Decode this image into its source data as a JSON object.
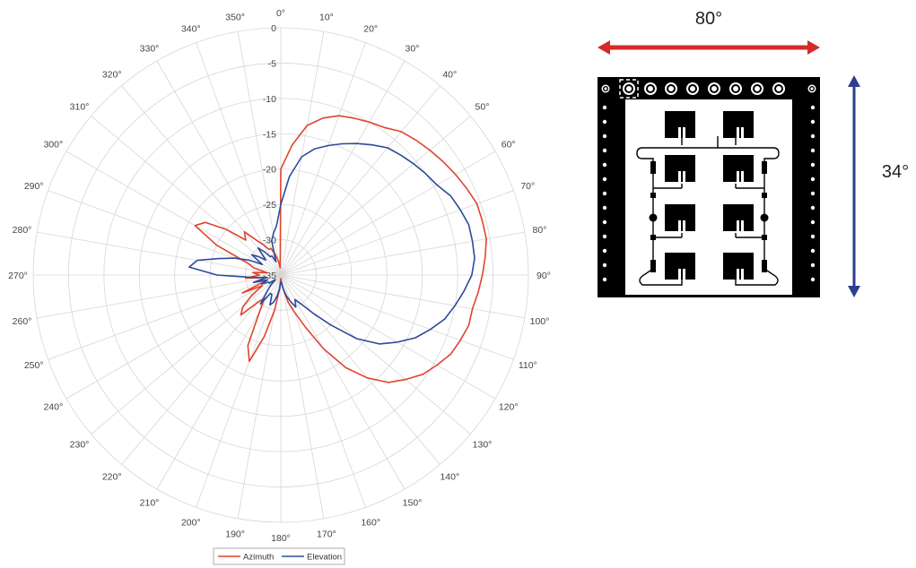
{
  "chart_data": {
    "type": "polar-line",
    "angle_unit": "degrees",
    "angle_zero": "top",
    "angle_direction": "clockwise",
    "theta_ticks": [
      "0°",
      "10°",
      "20°",
      "30°",
      "40°",
      "50°",
      "60°",
      "70°",
      "80°",
      "90°",
      "100°",
      "110°",
      "120°",
      "130°",
      "140°",
      "150°",
      "160°",
      "170°",
      "180°",
      "190°",
      "200°",
      "210°",
      "220°",
      "230°",
      "240°",
      "250°",
      "260°",
      "270°",
      "280°",
      "290°",
      "300°",
      "310°",
      "320°",
      "330°",
      "340°",
      "350°"
    ],
    "r_ticks": [
      "0",
      "-5",
      "-10",
      "-15",
      "-20",
      "-25",
      "-30",
      "-35"
    ],
    "rlim": [
      -35,
      0
    ],
    "grid": true,
    "legend": "bottom",
    "series": [
      {
        "name": "Azimuth",
        "color": "#e0442d",
        "theta": [
          0,
          5,
          10,
          15,
          20,
          25,
          30,
          35,
          40,
          45,
          50,
          55,
          60,
          65,
          70,
          75,
          80,
          85,
          90,
          95,
          100,
          105,
          110,
          115,
          120,
          125,
          130,
          135,
          140,
          145,
          150,
          155,
          160,
          165,
          170,
          175,
          180,
          185,
          190,
          195,
          200,
          205,
          210,
          215,
          220,
          225,
          230,
          235,
          240,
          245,
          250,
          255,
          260,
          265,
          270,
          275,
          280,
          285,
          290,
          295,
          300,
          305,
          310,
          315,
          320,
          325,
          330,
          335,
          340,
          345,
          350,
          355
        ],
        "r": [
          -20,
          -16.5,
          -13.5,
          -12,
          -11,
          -10.5,
          -10,
          -9.5,
          -8.5,
          -8,
          -7.5,
          -7,
          -6.5,
          -6,
          -5.5,
          -5.5,
          -5.5,
          -6,
          -6.5,
          -7,
          -7.5,
          -7.5,
          -8,
          -8.5,
          -9.5,
          -10.5,
          -12,
          -13.5,
          -16,
          -19,
          -23,
          -27,
          -29.5,
          -31,
          -33,
          -34,
          -34.5,
          -33,
          -30,
          -26,
          -22,
          -24,
          -29,
          -31,
          -30,
          -27,
          -28,
          -30,
          -32,
          -29,
          -33,
          -31,
          -33,
          -30,
          -32,
          -31,
          -33,
          -31,
          -30,
          -25,
          -21,
          -22,
          -25,
          -28,
          -27,
          -29,
          -30,
          -31,
          -31,
          -32,
          -33,
          -34
        ]
      },
      {
        "name": "Elevation",
        "color": "#2c4b9a",
        "theta": [
          0,
          5,
          10,
          15,
          20,
          25,
          30,
          35,
          40,
          45,
          50,
          55,
          60,
          65,
          70,
          75,
          80,
          85,
          90,
          95,
          100,
          105,
          110,
          115,
          120,
          125,
          130,
          135,
          140,
          145,
          150,
          155,
          160,
          165,
          170,
          175,
          180,
          185,
          190,
          195,
          200,
          205,
          210,
          215,
          220,
          225,
          230,
          235,
          240,
          245,
          250,
          255,
          260,
          265,
          270,
          275,
          280,
          285,
          290,
          295,
          300,
          305,
          310,
          315,
          320,
          325,
          330,
          335,
          340,
          345,
          350,
          355
        ],
        "r": [
          -25,
          -21,
          -18,
          -16.5,
          -15.5,
          -14.5,
          -13.5,
          -12.5,
          -11.5,
          -11,
          -10.5,
          -10,
          -9.5,
          -8.5,
          -8,
          -7.5,
          -7.5,
          -7.5,
          -8,
          -9,
          -10,
          -11,
          -12.5,
          -14,
          -16,
          -18,
          -21,
          -25,
          -28,
          -30,
          -31,
          -30,
          -31,
          -32,
          -33,
          -34,
          -34,
          -33,
          -32,
          -31,
          -30.5,
          -32,
          -32,
          -30,
          -32,
          -33,
          -34,
          -33,
          -33,
          -32,
          -33,
          -31,
          -33,
          -31,
          -26,
          -22,
          -23,
          -26,
          -28,
          -30,
          -32,
          -30,
          -31,
          -32,
          -30,
          -31,
          -32,
          -32,
          -33,
          -30,
          -29,
          -28
        ]
      }
    ]
  },
  "diagram": {
    "horizontal_label": "80°",
    "vertical_label": "34°",
    "horizontal_arrow_color": "#d42a2a",
    "vertical_arrow_color": "#2c3f8f"
  }
}
